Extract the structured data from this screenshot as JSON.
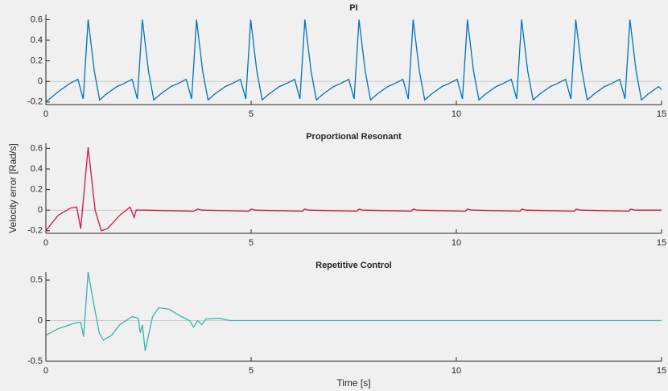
{
  "chart_data": [
    {
      "type": "line",
      "title": "PI",
      "color": "#0072bd",
      "zero_line": true,
      "x": [
        0,
        0.3,
        0.58,
        0.78,
        0.91,
        1.03,
        1.18,
        1.31,
        1.48,
        1.73,
        1.9,
        2.1,
        2.23,
        2.35,
        2.5,
        2.63,
        2.8,
        3.05,
        3.22,
        3.42,
        3.55,
        3.67,
        3.82,
        3.95,
        4.12,
        4.37,
        4.54,
        4.74,
        4.87,
        4.99,
        5.14,
        5.27,
        5.44,
        5.69,
        5.86,
        6.06,
        6.19,
        6.31,
        6.46,
        6.59,
        6.76,
        7.01,
        7.18,
        7.38,
        7.51,
        7.63,
        7.78,
        7.91,
        8.08,
        8.33,
        8.5,
        8.7,
        8.83,
        8.95,
        9.1,
        9.23,
        9.4,
        9.65,
        9.82,
        10.02,
        10.15,
        10.27,
        10.42,
        10.55,
        10.72,
        10.97,
        11.14,
        11.34,
        11.47,
        11.59,
        11.74,
        11.87,
        12.04,
        12.29,
        12.46,
        12.66,
        12.79,
        12.91,
        13.06,
        13.19,
        13.36,
        13.61,
        13.78,
        13.98,
        14.11,
        14.23,
        14.38,
        14.51,
        14.68,
        14.93,
        15
      ],
      "values": [
        -0.2,
        -0.1,
        -0.02,
        0.02,
        -0.17,
        0.6,
        0.1,
        -0.18,
        -0.12,
        -0.05,
        -0.02,
        0.02,
        -0.17,
        0.6,
        0.1,
        -0.18,
        -0.12,
        -0.05,
        -0.02,
        0.02,
        -0.17,
        0.6,
        0.1,
        -0.18,
        -0.12,
        -0.05,
        -0.02,
        0.02,
        -0.17,
        0.6,
        0.1,
        -0.18,
        -0.12,
        -0.05,
        -0.02,
        0.02,
        -0.17,
        0.6,
        0.1,
        -0.18,
        -0.12,
        -0.05,
        -0.02,
        0.02,
        -0.17,
        0.6,
        0.1,
        -0.18,
        -0.12,
        -0.05,
        -0.02,
        0.02,
        -0.17,
        0.6,
        0.1,
        -0.18,
        -0.12,
        -0.05,
        -0.02,
        0.02,
        -0.17,
        0.6,
        0.1,
        -0.18,
        -0.12,
        -0.05,
        -0.02,
        0.02,
        -0.17,
        0.6,
        0.1,
        -0.18,
        -0.12,
        -0.05,
        -0.02,
        0.02,
        -0.17,
        0.6,
        0.1,
        -0.18,
        -0.12,
        -0.05,
        -0.02,
        0.02,
        -0.17,
        0.6,
        0.1,
        -0.18,
        -0.12,
        -0.05,
        -0.08
      ],
      "xlim": [
        0,
        15
      ],
      "xticks": [
        0,
        5,
        10,
        15
      ],
      "ylim": [
        -0.225,
        0.65
      ],
      "yticks": [
        -0.2,
        0,
        0.2,
        0.4,
        0.6
      ]
    },
    {
      "type": "line",
      "title": "Proportional Resonant",
      "ylabel": "Velocity error [Rad/s]",
      "color": "#d2143c",
      "zero_line": true,
      "x": [
        0,
        0.3,
        0.6,
        0.75,
        0.85,
        1.03,
        1.2,
        1.35,
        1.5,
        1.8,
        2.05,
        2.15,
        2.2,
        2.4,
        3.6,
        3.7,
        3.8,
        4.95,
        5.0,
        5.1,
        6.25,
        6.3,
        6.4,
        7.58,
        7.63,
        7.72,
        8.9,
        8.95,
        9.05,
        10.22,
        10.27,
        10.37,
        11.55,
        11.6,
        11.7,
        12.87,
        12.92,
        13.02,
        14.2,
        14.25,
        14.35,
        15
      ],
      "values": [
        -0.2,
        -0.05,
        0.02,
        0.03,
        -0.18,
        0.61,
        0.0,
        -0.2,
        -0.18,
        -0.05,
        0.03,
        -0.07,
        0.0,
        0.0,
        -0.01,
        0.01,
        0.0,
        -0.01,
        0.01,
        0.0,
        -0.01,
        0.01,
        0.0,
        -0.01,
        0.01,
        0.0,
        -0.01,
        0.01,
        0.0,
        -0.01,
        0.01,
        0.0,
        -0.01,
        0.01,
        0.0,
        -0.01,
        0.01,
        0.0,
        -0.01,
        0.01,
        0.0,
        0.0
      ],
      "xlim": [
        0,
        15
      ],
      "xticks": [
        0,
        5,
        10,
        15
      ],
      "ylim": [
        -0.225,
        0.65
      ],
      "yticks": [
        -0.2,
        0,
        0.2,
        0.4,
        0.6
      ]
    },
    {
      "type": "line",
      "title": "Repetitive Control",
      "xlabel": "Time [s]",
      "color": "#3bb3a9",
      "zero_line": true,
      "x": [
        0,
        0.3,
        0.7,
        0.85,
        0.92,
        1.03,
        1.15,
        1.3,
        1.4,
        1.6,
        1.8,
        2.1,
        2.25,
        2.3,
        2.35,
        2.42,
        2.6,
        2.75,
        3.0,
        3.3,
        3.5,
        3.6,
        3.7,
        3.8,
        3.9,
        4.2,
        4.5,
        15
      ],
      "values": [
        -0.18,
        -0.1,
        -0.03,
        -0.02,
        -0.2,
        0.6,
        0.25,
        -0.15,
        -0.24,
        -0.18,
        -0.05,
        0.05,
        0.03,
        -0.15,
        -0.05,
        -0.37,
        0.05,
        0.16,
        0.14,
        0.05,
        0.0,
        -0.08,
        0.0,
        -0.05,
        0.02,
        0.03,
        0.0,
        0.0
      ],
      "xlim": [
        0,
        15
      ],
      "xticks": [
        0,
        5,
        10,
        15
      ],
      "ylim": [
        -0.5,
        0.6
      ],
      "yticks": [
        -0.5,
        0,
        0.5
      ]
    }
  ]
}
